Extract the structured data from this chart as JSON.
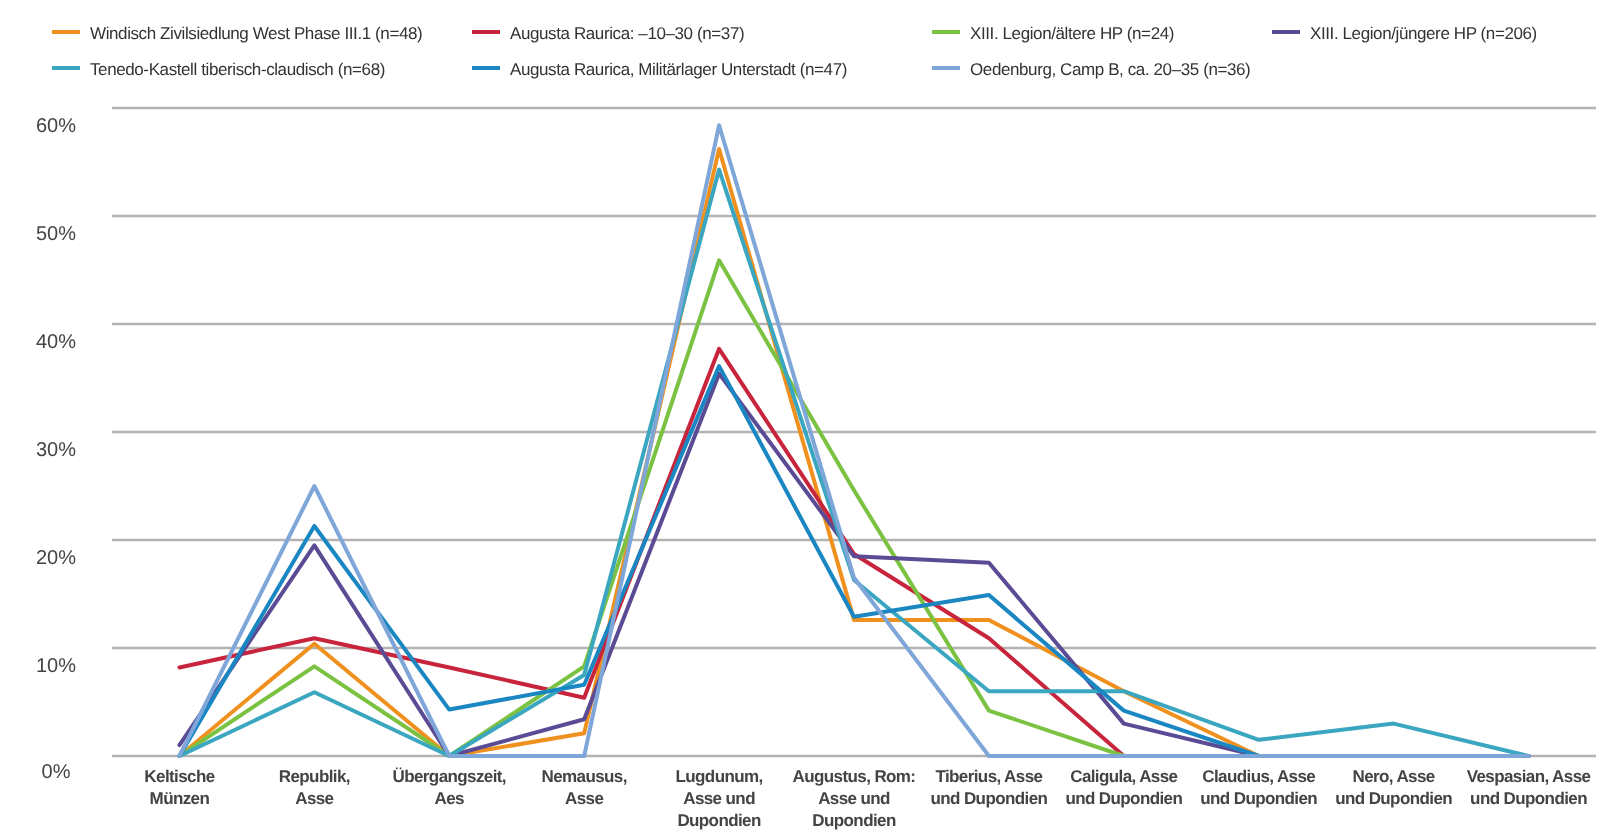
{
  "chart_data": {
    "type": "line",
    "categories": [
      "Keltische\nMünzen",
      "Republik,\nAsse",
      "Übergangszeit,\nAes",
      "Nemausus,\nAsse",
      "Lugdunum,\nAsse und\nDupondien",
      "Augustus, Rom:\nAsse und\nDupondien",
      "Tiberius, Asse\nund Dupondien",
      "Caligula, Asse\nund Dupondien",
      "Claudius, Asse\nund Dupondien",
      "Nero, Asse\nund Dupondien",
      "Vespasian, Asse\nund Dupondien"
    ],
    "series": [
      {
        "name": "Windisch Zivilsiedlung West Phase III.1 (n=48)",
        "color": "#f0901e",
        "values": [
          0,
          10.4,
          0,
          2.1,
          56.2,
          12.6,
          12.6,
          6.0,
          0,
          0,
          0
        ]
      },
      {
        "name": "Augusta Raurica: –10–30 (n=37)",
        "color": "#c8243c",
        "values": [
          8.2,
          10.9,
          8.2,
          5.4,
          37.7,
          18.7,
          10.9,
          0,
          0,
          null,
          null
        ]
      },
      {
        "name": "XIII. Legion/ältere HP  (n=24)",
        "color": "#7cc242",
        "values": [
          0,
          8.3,
          0,
          8.3,
          45.9,
          24.6,
          4.2,
          0,
          0,
          null,
          null
        ]
      },
      {
        "name": "XIII. Legion/jüngere HP (n=206)",
        "color": "#5b4a94",
        "values": [
          1.0,
          19.5,
          0,
          3.4,
          35.4,
          18.5,
          17.9,
          3.0,
          0,
          0,
          0
        ]
      },
      {
        "name": "Tenedo-Kastell tiberisch-claudisch (n=68)",
        "color": "#3aa6c0",
        "values": [
          0,
          5.9,
          0,
          7.5,
          54.3,
          16.3,
          6.0,
          6.0,
          1.5,
          3.0,
          0
        ]
      },
      {
        "name": "Augusta Raurica, Militärlager Unterstadt (n=47)",
        "color": "#1a87c2",
        "values": [
          0,
          21.3,
          4.3,
          6.6,
          36.1,
          12.9,
          14.9,
          4.2,
          0,
          0,
          0
        ]
      },
      {
        "name": "Oedenburg, Camp B, ca. 20–35 (n=36)",
        "color": "#7ea6d8",
        "values": [
          0,
          25.0,
          0,
          0,
          58.4,
          16.5,
          0,
          0,
          0,
          0,
          0
        ]
      }
    ],
    "ylim": [
      0,
      60
    ],
    "yticks": [
      {
        "value": 0,
        "label": "0%"
      },
      {
        "value": 10,
        "label": "10%"
      },
      {
        "value": 20,
        "label": "20%"
      },
      {
        "value": 30,
        "label": "30%"
      },
      {
        "value": 40,
        "label": "40%"
      },
      {
        "value": 50,
        "label": "50%"
      },
      {
        "value": 60,
        "label": "60%"
      }
    ],
    "grid": "y",
    "legend": "top",
    "marker": "none",
    "line_style": "solid"
  }
}
